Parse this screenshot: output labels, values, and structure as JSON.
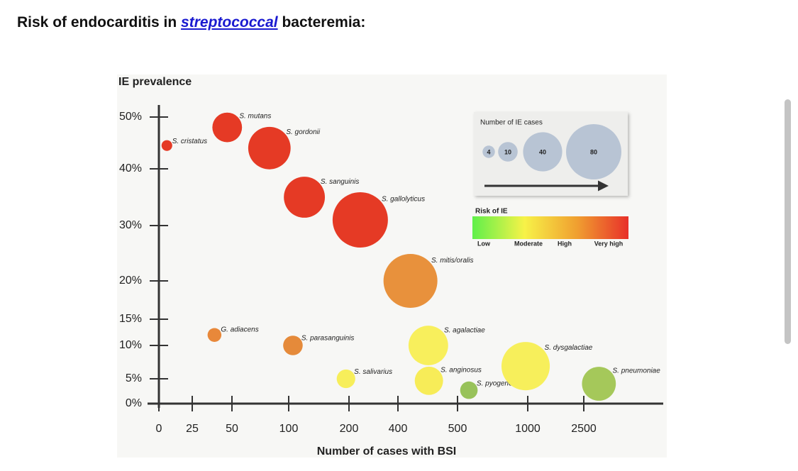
{
  "header": {
    "before": "Risk of endocarditis in ",
    "link": "streptococcal",
    "after": " bacteremia:"
  },
  "chart_data": {
    "type": "bubble",
    "y_label": "IE prevalence",
    "x_label": "Number of cases with BSI",
    "xlim": [
      0,
      4600
    ],
    "xticks": [
      0,
      25,
      50,
      100,
      200,
      400,
      500,
      1000,
      2500
    ],
    "ylim": [
      0,
      52
    ],
    "yticks": [
      {
        "value": 0,
        "label": "0%"
      },
      {
        "value": 5,
        "label": "5%"
      },
      {
        "value": 10,
        "label": "10%"
      },
      {
        "value": 15,
        "label": "15%"
      },
      {
        "value": 20,
        "label": "20%"
      },
      {
        "value": 30,
        "label": "30%"
      },
      {
        "value": 40,
        "label": "40%"
      },
      {
        "value": 50,
        "label": "50%"
      }
    ],
    "series": [
      {
        "name": "S. cristatus",
        "color": "#e53a25",
        "x": [
          6
        ],
        "values": [
          44.5
        ],
        "sizes": [
          3
        ]
      },
      {
        "name": "S. mutans",
        "color": "#e53a25",
        "x": [
          47
        ],
        "values": [
          48
        ],
        "sizes": [
          23
        ]
      },
      {
        "name": "S. gordonii",
        "color": "#e53a25",
        "x": [
          83
        ],
        "values": [
          44
        ],
        "sizes": [
          47
        ]
      },
      {
        "name": "S. sanguinis",
        "color": "#e53a25",
        "x": [
          126
        ],
        "values": [
          35
        ],
        "sizes": [
          44
        ]
      },
      {
        "name": "S. gallolyticus",
        "color": "#e53a25",
        "x": [
          246
        ],
        "values": [
          31
        ],
        "sizes": [
          80
        ]
      },
      {
        "name": "S. mitis/oralis",
        "color": "#e8913c",
        "x": [
          421
        ],
        "values": [
          20
        ],
        "sizes": [
          76
        ]
      },
      {
        "name": "G. adiacens",
        "color": "#e8883a",
        "x": [
          39
        ],
        "values": [
          12
        ],
        "sizes": [
          5
        ]
      },
      {
        "name": "S. parasanguinis",
        "color": "#e58a3a",
        "x": [
          107
        ],
        "values": [
          10
        ],
        "sizes": [
          10
        ]
      },
      {
        "name": "S. agalactiae",
        "color": "#f8ef5c",
        "x": [
          451
        ],
        "values": [
          10
        ],
        "sizes": [
          41
        ]
      },
      {
        "name": "S. salivarius",
        "color": "#f7ee5a",
        "x": [
          195
        ],
        "values": [
          5
        ],
        "sizes": [
          9
        ]
      },
      {
        "name": "S. anginosus",
        "color": "#f7ec58",
        "x": [
          452
        ],
        "values": [
          4.6
        ],
        "sizes": [
          21
        ]
      },
      {
        "name": "S. pyogenes",
        "color": "#98c25a",
        "x": [
          581
        ],
        "values": [
          2.7
        ],
        "sizes": [
          8
        ]
      },
      {
        "name": "S. dysgalactiae",
        "color": "#f7ef5b",
        "x": [
          985
        ],
        "values": [
          6.9
        ],
        "sizes": [
          61
        ]
      },
      {
        "name": "S. pneumoniae",
        "color": "#a5c85a",
        "x": [
          2900
        ],
        "values": [
          4
        ],
        "sizes": [
          30
        ]
      }
    ],
    "size_legend": {
      "title": "Number of IE cases",
      "values": [
        4,
        10,
        40,
        80
      ],
      "color": "#b8c4d4"
    },
    "color_legend": {
      "title": "Risk of IE",
      "labels": [
        "Low",
        "Moderate",
        "High",
        "Very high"
      ],
      "colors": [
        "#5ff04a",
        "#f7f248",
        "#f0a030",
        "#e8302a"
      ]
    }
  }
}
